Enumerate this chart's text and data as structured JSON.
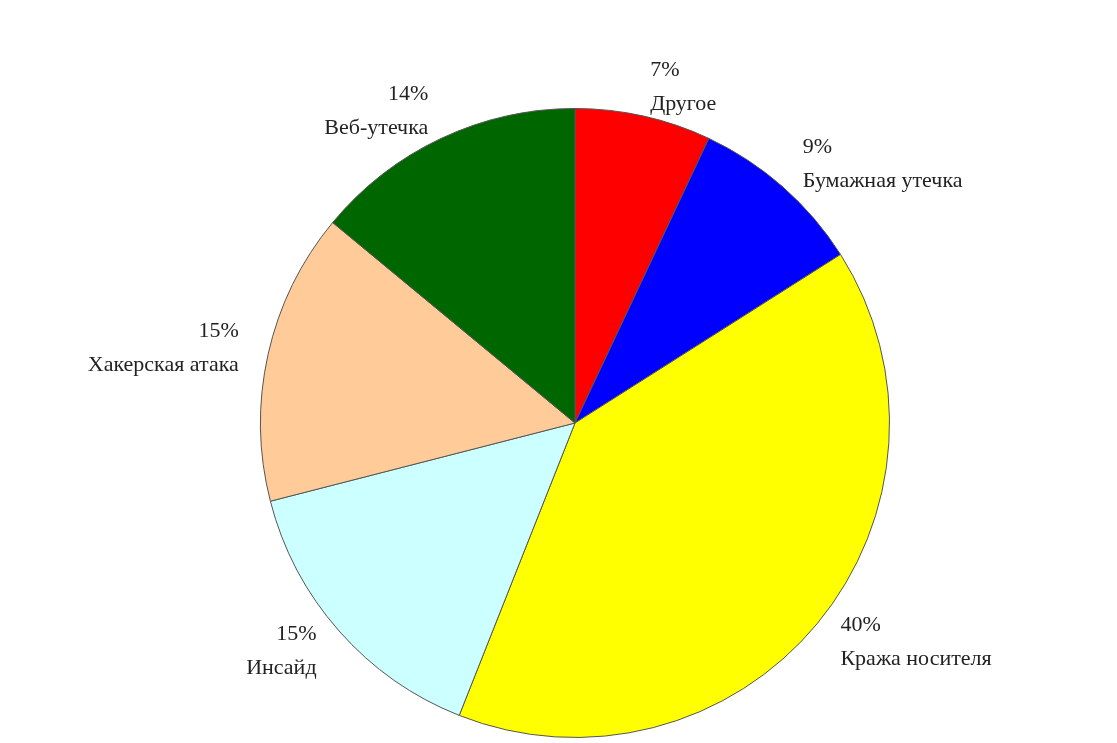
{
  "chart_data": {
    "type": "pie",
    "categories": [
      "Другое",
      "Бумажная утечка",
      "Кража носителя",
      "Инсайд",
      "Хакерская атака",
      "Веб-утечка"
    ],
    "values": [
      7,
      9,
      40,
      15,
      15,
      14
    ],
    "colors": [
      "#ff0000",
      "#0000ff",
      "#ffff00",
      "#ccffff",
      "#ffcc99",
      "#006600"
    ],
    "value_labels": [
      "7%",
      "9%",
      "40%",
      "15%",
      "15%",
      "14%"
    ],
    "legend": false
  }
}
